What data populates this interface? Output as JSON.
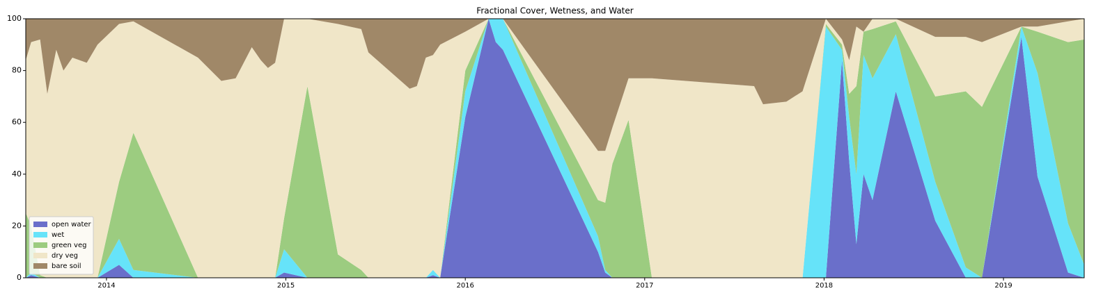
{
  "chart_data": {
    "type": "stacked-area",
    "title": "Fractional Cover, Wetness, and Water",
    "x": [
      2013.55,
      2013.58,
      2013.63,
      2013.67,
      2013.72,
      2013.76,
      2013.81,
      2013.89,
      2013.95,
      2014.07,
      2014.15,
      2014.51,
      2014.64,
      2014.72,
      2014.81,
      2014.86,
      2014.9,
      2014.94,
      2014.99,
      2015.12,
      2015.29,
      2015.42,
      2015.46,
      2015.69,
      2015.73,
      2015.78,
      2015.82,
      2015.86,
      2016.0,
      2016.13,
      2016.17,
      2016.21,
      2016.74,
      2016.78,
      2016.82,
      2016.91,
      2017.04,
      2017.61,
      2017.66,
      2017.79,
      2017.88,
      2018.01,
      2018.1,
      2018.14,
      2018.18,
      2018.22,
      2018.27,
      2018.4,
      2018.62,
      2018.79,
      2018.88,
      2019.1,
      2019.19,
      2019.36,
      2019.45
    ],
    "series": [
      {
        "name": "open water",
        "color": "#6a6fca",
        "values": [
          0,
          1,
          0,
          0,
          0,
          0,
          0,
          0,
          0,
          5,
          0,
          0,
          0,
          0,
          0,
          0,
          0,
          0,
          2,
          0,
          0,
          0,
          0,
          0,
          0,
          0,
          1,
          0,
          62,
          100,
          91,
          88,
          10,
          2,
          0,
          0,
          0,
          0,
          0,
          0,
          0,
          0,
          84,
          45,
          13,
          40,
          30,
          72,
          22,
          0,
          0,
          93,
          39,
          2,
          0
        ]
      },
      {
        "name": "wet",
        "color": "#66e3f9",
        "values": [
          0,
          1,
          0,
          0,
          0,
          0,
          0,
          0,
          0,
          10,
          3,
          0,
          0,
          0,
          0,
          0,
          0,
          0,
          9,
          0,
          0,
          0,
          0,
          0,
          0,
          0,
          2,
          0,
          10,
          0,
          9,
          12,
          6,
          1,
          0,
          0,
          0,
          0,
          0,
          0,
          0,
          97,
          4,
          17,
          27,
          46,
          47,
          22,
          15,
          4,
          0,
          4,
          40,
          19,
          5
        ]
      },
      {
        "name": "green veg",
        "color": "#9ccc80",
        "values": [
          25,
          18,
          1,
          0,
          0,
          0,
          0,
          0,
          0,
          22,
          53,
          0,
          0,
          0,
          0,
          0,
          0,
          0,
          12,
          74,
          9,
          3,
          0,
          0,
          0,
          0,
          0,
          0,
          8,
          0,
          0,
          0,
          14,
          26,
          44,
          61,
          0,
          0,
          0,
          0,
          0,
          1,
          2,
          9,
          34,
          9,
          19,
          5,
          33,
          68,
          66,
          0,
          16,
          70,
          87
        ]
      },
      {
        "name": "dry veg",
        "color": "#f0e6c8",
        "values": [
          59,
          71,
          91,
          71,
          88,
          80,
          85,
          83,
          90,
          61,
          43,
          85,
          76,
          77,
          89,
          84,
          81,
          83,
          77,
          26,
          89,
          93,
          87,
          73,
          74,
          85,
          83,
          90,
          15,
          0,
          0,
          0,
          19,
          20,
          14,
          16,
          77,
          74,
          67,
          68,
          72,
          2,
          2,
          13,
          23,
          0,
          4,
          1,
          23,
          21,
          25,
          0,
          2,
          8,
          8
        ]
      },
      {
        "name": "bare soil",
        "color": "#a08868",
        "values": [
          16,
          9,
          8,
          29,
          12,
          20,
          15,
          17,
          10,
          2,
          1,
          15,
          24,
          23,
          11,
          16,
          19,
          17,
          0,
          0,
          2,
          4,
          13,
          27,
          26,
          15,
          14,
          10,
          5,
          0,
          0,
          0,
          51,
          51,
          42,
          23,
          23,
          26,
          33,
          32,
          28,
          0,
          8,
          16,
          3,
          5,
          0,
          0,
          7,
          7,
          9,
          3,
          3,
          1,
          0
        ]
      }
    ],
    "xlim": [
      2013.55,
      2019.45
    ],
    "xticks": [
      2014,
      2015,
      2016,
      2017,
      2018,
      2019
    ],
    "ylim": [
      0,
      100
    ],
    "yticks": [
      0,
      20,
      40,
      60,
      80,
      100
    ],
    "legend": "lower left"
  }
}
